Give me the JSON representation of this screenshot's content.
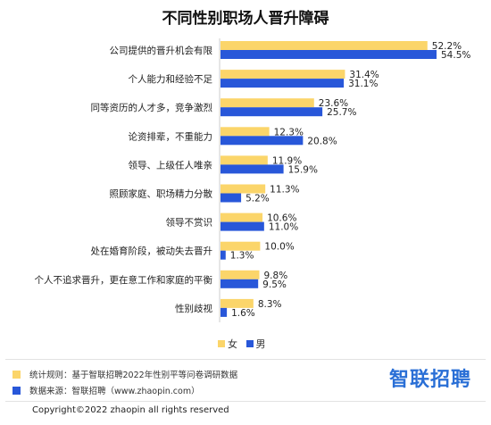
{
  "page": {
    "title": "不同性别职场人晋升障碍"
  },
  "legend": {
    "female_label": "女",
    "male_label": "男"
  },
  "notes": {
    "method": "统计规则：基于智联招聘2022年性别平等问卷调研数据",
    "source": "数据来源：智联招聘（www.zhaopin.com）"
  },
  "logo": {
    "text": "智联招聘"
  },
  "copyright": "Copyright©2022 zhaopin all rights reserved",
  "colors": {
    "female": "#fbd56a",
    "male": "#2857d9"
  },
  "chart_data": {
    "type": "bar",
    "orientation": "horizontal",
    "categories": [
      "公司提供的晋升机会有限",
      "个人能力和经验不足",
      "同等资历的人才多，竞争激烈",
      "论资排辈，不重能力",
      "领导、上级任人唯亲",
      "照顾家庭、职场精力分散",
      "领导不赏识",
      "处在婚育阶段，被动失去晋升",
      "个人不追求晋升，更在意工作和家庭的平衡",
      "性别歧视"
    ],
    "series": [
      {
        "name": "女",
        "values": [
          52.2,
          31.4,
          23.6,
          12.3,
          11.9,
          11.3,
          10.6,
          10.0,
          9.8,
          8.3
        ],
        "labels": [
          "52.2%",
          "31.4%",
          "23.6%",
          "12.3%",
          "11.9%",
          "11.3%",
          "10.6%",
          "10.0%",
          "9.8%",
          "8.3%"
        ]
      },
      {
        "name": "男",
        "values": [
          54.5,
          31.1,
          25.7,
          20.8,
          15.9,
          5.2,
          11.0,
          1.3,
          9.5,
          1.6
        ],
        "labels": [
          "54.5%",
          "31.1%",
          "25.7%",
          "20.8%",
          "15.9%",
          "5.2%",
          "11.0%",
          "1.3%",
          "9.5%",
          "1.6%"
        ]
      }
    ],
    "unit": "%",
    "xlim": [
      0,
      54.5
    ],
    "legend_position": "bottom",
    "grid": false
  }
}
